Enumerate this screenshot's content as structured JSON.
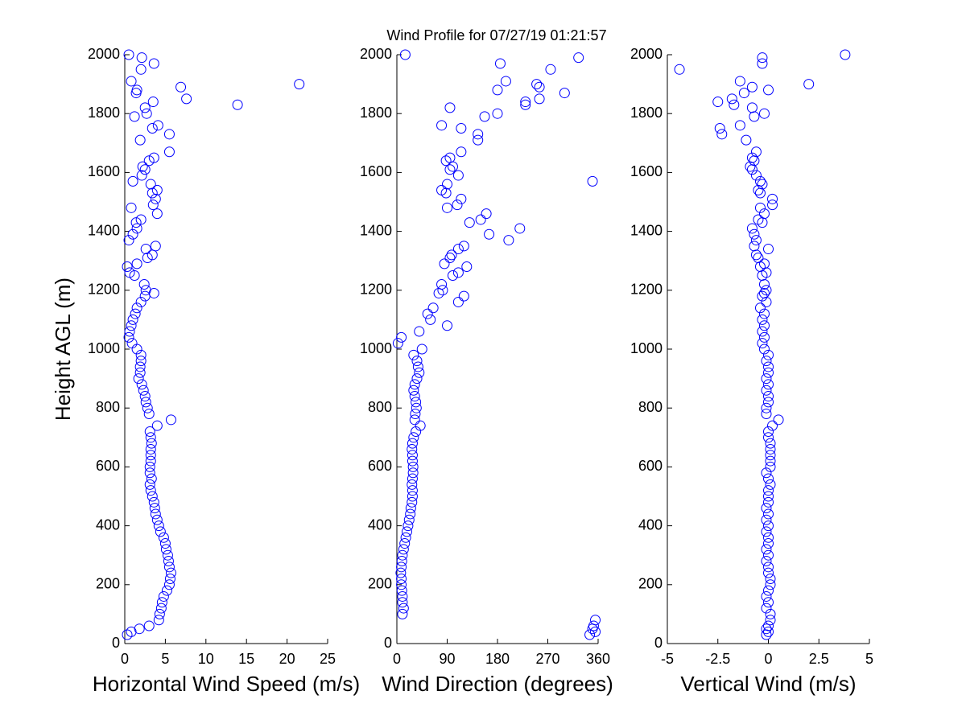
{
  "chart_data": [
    {
      "type": "scatter",
      "title": "Wind Profile for  07/27/19 01:21:57",
      "xlabel": "Horizontal Wind Speed (m/s)",
      "ylabel": "Height AGL (m)",
      "color": "#0000ff",
      "xlim": [
        0,
        25
      ],
      "xticks": [
        0,
        5,
        10,
        15,
        20,
        25
      ],
      "ylim": [
        0,
        2000
      ],
      "yticks": [
        0,
        200,
        400,
        600,
        800,
        1000,
        1200,
        1400,
        1600,
        1800,
        2000
      ],
      "x": [
        0.3,
        0.8,
        1.8,
        3,
        4.2,
        4.3,
        4.5,
        4.6,
        4.8,
        5.2,
        5.5,
        5.6,
        5.7,
        5.5,
        5.4,
        5.3,
        5.1,
        5,
        4.8,
        4.4,
        4.2,
        4.0,
        3.8,
        3.7,
        3.6,
        3.4,
        3.2,
        3.1,
        3.3,
        3.1,
        3.1,
        3.2,
        3.2,
        3.2,
        3.3,
        3.2,
        3.1,
        4.0,
        5.7,
        3.0,
        2.8,
        2.6,
        2.5,
        2.3,
        2.1,
        1.7,
        1.9,
        1.9,
        2.0,
        2.0,
        1.5,
        0.9,
        0.5,
        0.6,
        0.8,
        1.0,
        1.3,
        1.5,
        2.0,
        2.5,
        3.6,
        2.6,
        2.4,
        1.2,
        0.6,
        0.3,
        1.5,
        2.8,
        3.4,
        2.6,
        3.8,
        0.5,
        1.0,
        1.5,
        1.4,
        2.0,
        4.0,
        0.8,
        3.5,
        3.8,
        3.4,
        4.0,
        3.2,
        1.0,
        2.1,
        2.5,
        2.2,
        3.0,
        3.6,
        5.5,
        1.9,
        5.5,
        3.4,
        4.1,
        1.2,
        2.7,
        2.5,
        13.9,
        3.5,
        7.6,
        1.4,
        1.5,
        6.9,
        21.5,
        0.8,
        2.0,
        3.6,
        2.1,
        0.5
      ],
      "y": [
        30,
        40,
        50,
        60,
        80,
        100,
        120,
        140,
        160,
        180,
        200,
        220,
        240,
        260,
        280,
        300,
        320,
        340,
        360,
        380,
        400,
        420,
        440,
        460,
        480,
        500,
        520,
        540,
        560,
        580,
        600,
        620,
        640,
        660,
        680,
        700,
        720,
        740,
        760,
        780,
        800,
        820,
        840,
        860,
        880,
        900,
        920,
        940,
        960,
        980,
        1000,
        1020,
        1040,
        1060,
        1080,
        1100,
        1120,
        1140,
        1160,
        1180,
        1190,
        1200,
        1220,
        1250,
        1260,
        1280,
        1290,
        1310,
        1320,
        1340,
        1350,
        1370,
        1390,
        1410,
        1430,
        1440,
        1460,
        1480,
        1490,
        1510,
        1530,
        1540,
        1560,
        1570,
        1590,
        1610,
        1620,
        1640,
        1650,
        1670,
        1710,
        1730,
        1750,
        1760,
        1790,
        1800,
        1820,
        1830,
        1840,
        1850,
        1870,
        1880,
        1890,
        1900,
        1910,
        1950,
        1970,
        1990,
        2000
      ]
    },
    {
      "type": "scatter",
      "xlabel": "Wind Direction (degrees)",
      "color": "#0000ff",
      "xlim": [
        0,
        360
      ],
      "xticks": [
        0,
        90,
        180,
        270,
        360
      ],
      "ylim": [
        0,
        2000
      ],
      "yticks": [
        0,
        200,
        400,
        600,
        800,
        1000,
        1200,
        1400,
        1600,
        1800,
        2000
      ],
      "x": [
        345,
        355,
        350,
        352,
        355,
        10,
        12,
        10,
        10,
        9,
        8,
        8,
        7,
        8,
        9,
        10,
        12,
        14,
        16,
        18,
        20,
        22,
        24,
        25,
        27,
        28,
        28,
        27,
        28,
        29,
        29,
        28,
        28,
        27,
        28,
        30,
        34,
        42,
        32,
        33,
        35,
        34,
        32,
        30,
        32,
        36,
        40,
        38,
        36,
        30,
        45,
        2,
        8,
        40,
        90,
        60,
        55,
        65,
        110,
        120,
        75,
        82,
        80,
        100,
        110,
        125,
        85,
        95,
        98,
        110,
        120,
        200,
        165,
        220,
        130,
        150,
        160,
        90,
        108,
        115,
        88,
        80,
        90,
        350,
        110,
        95,
        100,
        88,
        95,
        115,
        145,
        145,
        115,
        80,
        157,
        180,
        95,
        230,
        230,
        255,
        300,
        180,
        255,
        250,
        195,
        275,
        185,
        325,
        15
      ],
      "y": [
        30,
        40,
        50,
        60,
        80,
        100,
        120,
        140,
        160,
        180,
        200,
        220,
        240,
        260,
        280,
        300,
        320,
        340,
        360,
        380,
        400,
        420,
        440,
        460,
        480,
        500,
        520,
        540,
        560,
        580,
        600,
        620,
        640,
        660,
        680,
        700,
        720,
        740,
        760,
        780,
        800,
        820,
        840,
        860,
        880,
        900,
        920,
        940,
        960,
        980,
        1000,
        1020,
        1040,
        1060,
        1080,
        1100,
        1120,
        1140,
        1160,
        1180,
        1190,
        1200,
        1220,
        1250,
        1260,
        1280,
        1290,
        1310,
        1320,
        1340,
        1350,
        1370,
        1390,
        1410,
        1430,
        1440,
        1460,
        1480,
        1490,
        1510,
        1530,
        1540,
        1560,
        1570,
        1590,
        1610,
        1620,
        1640,
        1650,
        1670,
        1710,
        1730,
        1750,
        1760,
        1790,
        1800,
        1820,
        1830,
        1840,
        1850,
        1870,
        1880,
        1890,
        1900,
        1910,
        1950,
        1970,
        1990,
        2000
      ]
    },
    {
      "type": "scatter",
      "xlabel": "Vertical Wind (m/s)",
      "color": "#0000ff",
      "xlim": [
        -5,
        5
      ],
      "xticks": [
        -5,
        -2.5,
        0,
        2.5,
        5
      ],
      "ylim": [
        0,
        2000
      ],
      "yticks": [
        0,
        200,
        400,
        600,
        800,
        1000,
        1200,
        1400,
        1600,
        1800,
        2000
      ],
      "x": [
        -0.1,
        0,
        -0.1,
        0,
        0.1,
        0.1,
        -0.1,
        0,
        -0.1,
        0,
        0.1,
        0.1,
        0,
        0,
        -0.1,
        0,
        -0.1,
        0,
        0,
        -0.1,
        0,
        -0.1,
        0,
        -0.1,
        0,
        0,
        0,
        0.1,
        0,
        -0.1,
        0.1,
        0.1,
        0.1,
        0.1,
        0.1,
        0,
        0,
        0.2,
        0.5,
        -0.1,
        -0.1,
        0,
        0,
        -0.1,
        0,
        -0.1,
        0,
        0,
        -0.1,
        0,
        -0.2,
        -0.3,
        -0.2,
        -0.3,
        -0.2,
        -0.3,
        -0.2,
        -0.4,
        -0.1,
        -0.3,
        -0.2,
        -0.1,
        -0.2,
        -0.3,
        -0.1,
        -0.4,
        -0.2,
        -0.5,
        -0.6,
        0,
        -0.7,
        -0.6,
        -0.7,
        -0.8,
        -0.3,
        -0.5,
        -0.2,
        -0.4,
        0.2,
        0.2,
        -0.4,
        -0.5,
        -0.3,
        -0.4,
        -0.6,
        -0.8,
        -0.9,
        -0.7,
        -0.8,
        -0.6,
        -1.1,
        -2.3,
        -2.4,
        -1.4,
        -0.7,
        -0.2,
        -0.8,
        -1.7,
        -2.5,
        -1.8,
        -1.2,
        0,
        -0.8,
        2,
        -1.4,
        -4.4,
        -0.3,
        -0.3,
        3.8
      ],
      "y": [
        30,
        40,
        50,
        60,
        80,
        100,
        120,
        140,
        160,
        180,
        200,
        220,
        240,
        260,
        280,
        300,
        320,
        340,
        360,
        380,
        400,
        420,
        440,
        460,
        480,
        500,
        520,
        540,
        560,
        580,
        600,
        620,
        640,
        660,
        680,
        700,
        720,
        740,
        760,
        780,
        800,
        820,
        840,
        860,
        880,
        900,
        920,
        940,
        960,
        980,
        1000,
        1020,
        1040,
        1060,
        1080,
        1100,
        1120,
        1140,
        1160,
        1180,
        1190,
        1200,
        1220,
        1250,
        1260,
        1280,
        1290,
        1310,
        1320,
        1340,
        1350,
        1370,
        1390,
        1410,
        1430,
        1440,
        1460,
        1480,
        1490,
        1510,
        1530,
        1540,
        1560,
        1570,
        1590,
        1610,
        1620,
        1640,
        1650,
        1670,
        1710,
        1730,
        1750,
        1760,
        1790,
        1800,
        1820,
        1830,
        1840,
        1850,
        1870,
        1880,
        1890,
        1900,
        1910,
        1950,
        1970,
        1990,
        2000
      ]
    }
  ]
}
